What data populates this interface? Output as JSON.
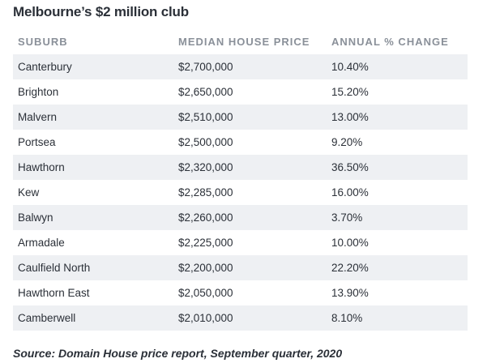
{
  "title": "Melbourne’s $2 million club",
  "columns": {
    "suburb": "SUBURB",
    "price": "MEDIAN HOUSE PRICE",
    "change": "ANNUAL % CHANGE"
  },
  "rows": [
    {
      "suburb": "Canterbury",
      "price": "$2,700,000",
      "change": "10.40%"
    },
    {
      "suburb": "Brighton",
      "price": "$2,650,000",
      "change": "15.20%"
    },
    {
      "suburb": "Malvern",
      "price": "$2,510,000",
      "change": "13.00%"
    },
    {
      "suburb": "Portsea",
      "price": "$2,500,000",
      "change": "9.20%"
    },
    {
      "suburb": "Hawthorn",
      "price": "$2,320,000",
      "change": "36.50%"
    },
    {
      "suburb": "Kew",
      "price": "$2,285,000",
      "change": "16.00%"
    },
    {
      "suburb": "Balwyn",
      "price": "$2,260,000",
      "change": "3.70%"
    },
    {
      "suburb": "Armadale",
      "price": "$2,225,000",
      "change": "10.00%"
    },
    {
      "suburb": "Caulfield North",
      "price": "$2,200,000",
      "change": "22.20%"
    },
    {
      "suburb": "Hawthorn East",
      "price": "$2,050,000",
      "change": "13.90%"
    },
    {
      "suburb": "Camberwell",
      "price": "$2,010,000",
      "change": "8.10%"
    }
  ],
  "source": "Source: Domain House price report, September quarter, 2020",
  "colors": {
    "stripe": "#eef0f3",
    "header_text": "#8a9099",
    "body_text": "#2b3038"
  }
}
